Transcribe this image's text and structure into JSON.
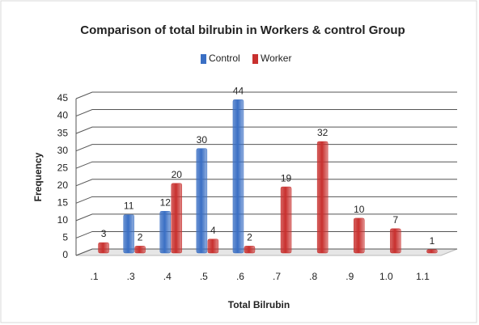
{
  "chart_data": {
    "type": "bar",
    "title": "Comparison of total bilrubin in Workers & control Group",
    "x_label": "Total Bilrubin",
    "y_label": "Frequency",
    "categories": [
      ".1",
      ".3",
      ".4",
      ".5",
      ".6",
      ".7",
      ".8",
      ".9",
      "1.0",
      "1.1"
    ],
    "series": [
      {
        "name": "Control",
        "color": "#3a6fc4",
        "values": [
          null,
          11,
          12,
          30,
          44,
          null,
          null,
          null,
          null,
          null
        ]
      },
      {
        "name": "Worker",
        "color": "#c8302e",
        "values": [
          3,
          2,
          20,
          4,
          2,
          19,
          32,
          10,
          7,
          1
        ]
      }
    ],
    "ylim": [
      0,
      45
    ],
    "yticks": [
      0,
      5,
      10,
      15,
      20,
      25,
      30,
      35,
      40,
      45
    ],
    "grid": true,
    "legend": "top"
  }
}
